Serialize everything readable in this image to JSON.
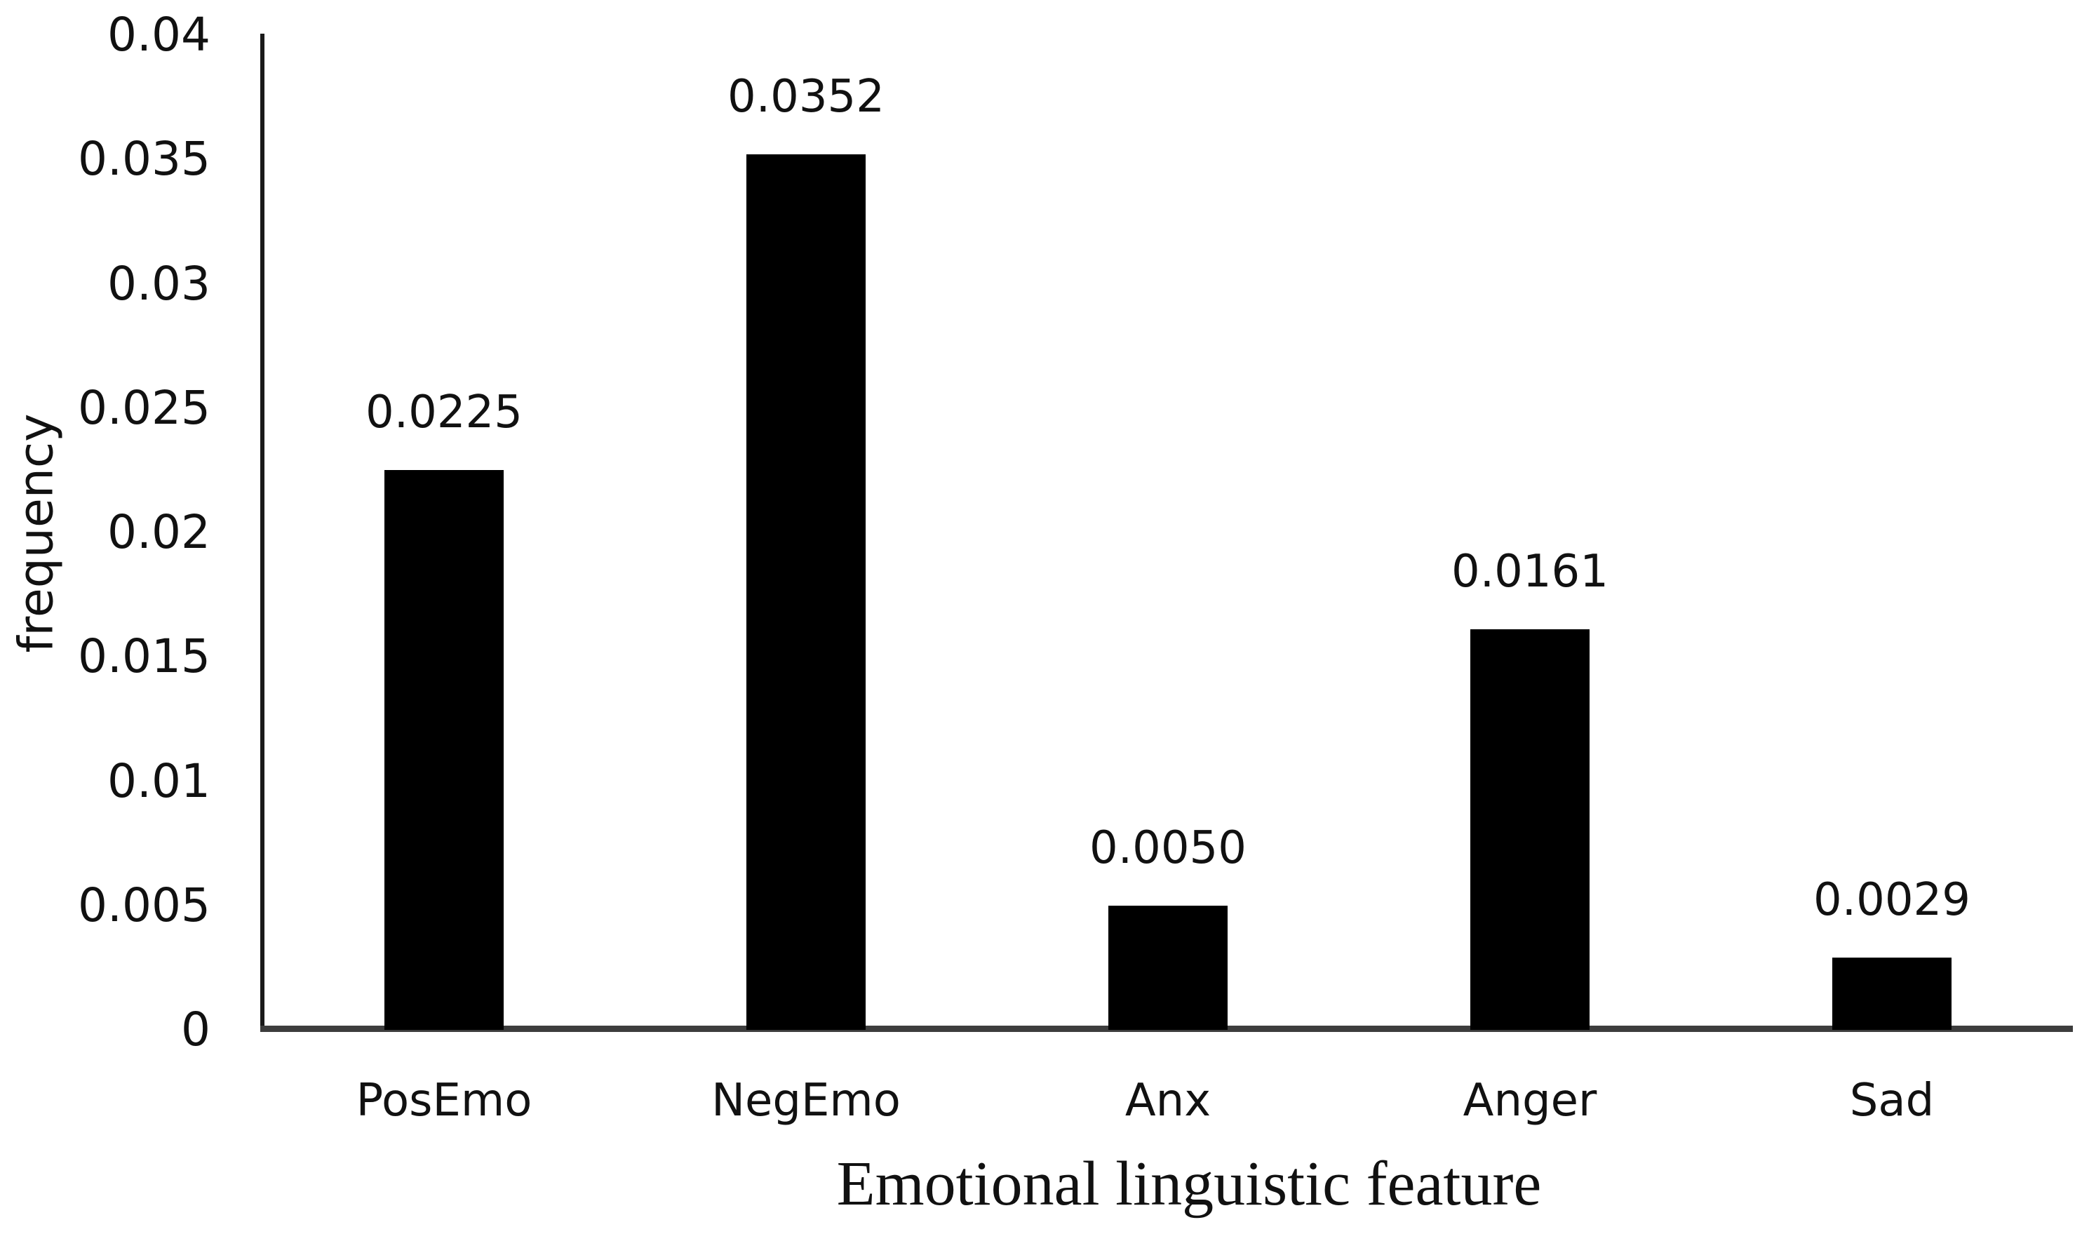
{
  "chart_data": {
    "type": "bar",
    "title": "",
    "categories": [
      "PosEmo",
      "NegEmo",
      "Anx",
      "Anger",
      "Sad"
    ],
    "values": [
      0.0225,
      0.0352,
      0.005,
      0.0161,
      0.0029
    ],
    "value_labels": [
      "0.0225",
      "0.0352",
      "0.0050",
      "0.0161",
      "0.0029"
    ],
    "xlabel": "Emotional linguistic feature",
    "ylabel": "frequency",
    "ylim": [
      0,
      0.04
    ],
    "yticks": {
      "values": [
        0,
        0.005,
        0.01,
        0.015,
        0.02,
        0.025,
        0.03,
        0.035,
        0.04
      ],
      "labels": [
        "0",
        "0.005",
        "0.01",
        "0.015",
        "0.02",
        "0.025",
        "0.03",
        "0.035",
        "0.04"
      ]
    },
    "grid": false,
    "legend_position": "none",
    "colors": {
      "bar": "#000000",
      "y_axis_line": "#1a1a1a",
      "x_axis_line": "#3d3d3d",
      "text": "#111111",
      "background": "#ffffff"
    }
  }
}
